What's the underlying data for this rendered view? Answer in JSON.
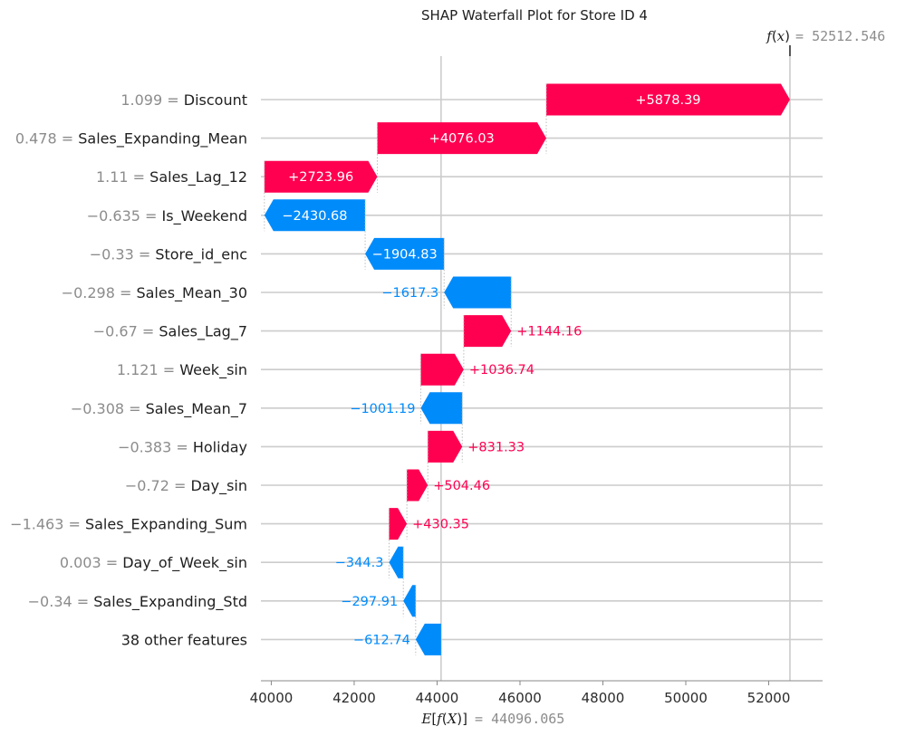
{
  "chart_data": {
    "type": "waterfall",
    "title": "SHAP Waterfall Plot for Store ID 4",
    "base_value": 44096.065,
    "base_value_text": "44096.065",
    "fx_value": 52512.546,
    "fx_value_text": "52512.546",
    "xlim": [
      39750,
      53300
    ],
    "xticks": [
      40000,
      42000,
      44000,
      46000,
      48000,
      50000,
      52000
    ],
    "xtick_labels": [
      "40000",
      "42000",
      "44000",
      "46000",
      "48000",
      "50000",
      "52000"
    ],
    "features": [
      {
        "value": "1.099",
        "name": "Discount",
        "shap": 5878.39,
        "label": "+5878.39"
      },
      {
        "value": "0.478",
        "name": "Sales_Expanding_Mean",
        "shap": 4076.03,
        "label": "+4076.03"
      },
      {
        "value": "1.11",
        "name": "Sales_Lag_12",
        "shap": 2723.96,
        "label": "+2723.96"
      },
      {
        "value": "−0.635",
        "name": "Is_Weekend",
        "shap": -2430.68,
        "label": "−2430.68"
      },
      {
        "value": "−0.33",
        "name": "Store_id_enc",
        "shap": -1904.83,
        "label": "−1904.83"
      },
      {
        "value": "−0.298",
        "name": "Sales_Mean_30",
        "shap": -1617.3,
        "label": "−1617.3"
      },
      {
        "value": "−0.67",
        "name": "Sales_Lag_7",
        "shap": 1144.16,
        "label": "+1144.16"
      },
      {
        "value": "1.121",
        "name": "Week_sin",
        "shap": 1036.74,
        "label": "+1036.74"
      },
      {
        "value": "−0.308",
        "name": "Sales_Mean_7",
        "shap": -1001.19,
        "label": "−1001.19"
      },
      {
        "value": "−0.383",
        "name": "Holiday",
        "shap": 831.33,
        "label": "+831.33"
      },
      {
        "value": "−0.72",
        "name": "Day_sin",
        "shap": 504.46,
        "label": "+504.46"
      },
      {
        "value": "−1.463",
        "name": "Sales_Expanding_Sum",
        "shap": 430.35,
        "label": "+430.35"
      },
      {
        "value": "0.003",
        "name": "Day_of_Week_sin",
        "shap": -344.3,
        "label": "−344.3"
      },
      {
        "value": "−0.34",
        "name": "Sales_Expanding_Std",
        "shap": -297.91,
        "label": "−297.91"
      },
      {
        "value": "",
        "name": "38 other features",
        "shap": -612.74,
        "label": "−612.74"
      }
    ],
    "colors": {
      "positive": "#ff0051",
      "negative": "#008bfb",
      "grid": "#cccccc",
      "text": "#1f1f1f",
      "muted": "#8c8c8c"
    }
  }
}
